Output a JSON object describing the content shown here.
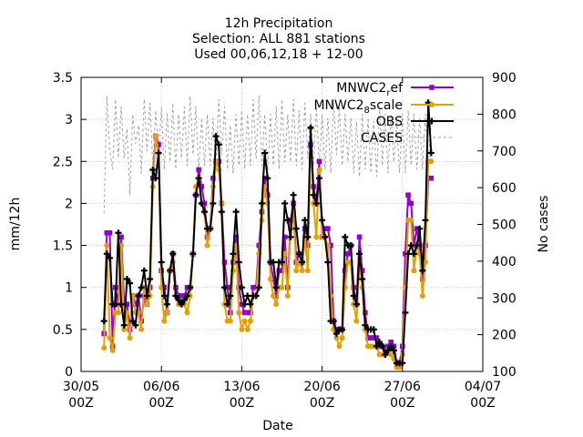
{
  "chart_data": {
    "type": "line",
    "title_lines": [
      "12h Precipitation",
      "Selection: ALL     881 stations",
      "Used 00,06,12,18 + 12-00"
    ],
    "xlabel": "Date",
    "ylabel": "mm/12h",
    "y2label": "No cases",
    "x_ticks": [
      {
        "day": 0,
        "line1": "30/05",
        "line2": "00Z"
      },
      {
        "day": 7,
        "line1": "06/06",
        "line2": "00Z"
      },
      {
        "day": 14,
        "line1": "13/06",
        "line2": "00Z"
      },
      {
        "day": 21,
        "line1": "20/06",
        "line2": "00Z"
      },
      {
        "day": 28,
        "line1": "27/06",
        "line2": "00Z"
      },
      {
        "day": 35,
        "line1": "04/07",
        "line2": "00Z"
      }
    ],
    "x_range": [
      0,
      35
    ],
    "y_ticks": [
      "0",
      "0.5",
      "1",
      "1.5",
      "2",
      "2.5",
      "3",
      "3.5"
    ],
    "ylim": [
      0,
      3.5
    ],
    "y2_ticks": [
      "100",
      "200",
      "300",
      "400",
      "500",
      "600",
      "700",
      "800",
      "900"
    ],
    "y2lim": [
      100,
      900
    ],
    "grid": true,
    "legend_position": "top-right",
    "x_step_days": 0.25,
    "x_start_day": 2.0,
    "series": [
      {
        "name": "MNWC2_ref",
        "label_main": "MNWC2",
        "label_sub": "r",
        "label_rest": "ef",
        "color": "#9400d3",
        "axis": "y1",
        "marker": "square",
        "values": [
          0.45,
          1.65,
          1.65,
          0.3,
          1.0,
          0.8,
          1.6,
          0.8,
          0.8,
          0.5,
          0.9,
          0.8,
          0.9,
          0.6,
          0.9,
          0.8,
          1.0,
          2.3,
          2.8,
          2.7,
          1.2,
          1.0,
          0.7,
          1.2,
          1.4,
          1.0,
          0.9,
          0.9,
          0.9,
          1.0,
          1.0,
          1.4,
          2.1,
          2.4,
          2.2,
          2.0,
          1.6,
          1.7,
          2.3,
          2.5,
          2.5,
          2.0,
          1.3,
          1.0,
          0.7,
          1.3,
          1.6,
          1.0,
          0.8,
          0.7,
          0.7,
          0.7,
          1.0,
          1.0,
          1.5,
          1.9,
          2.3,
          2.1,
          1.3,
          1.1,
          0.9,
          1.2,
          1.2,
          1.6,
          1.0,
          1.8,
          2.0,
          1.3,
          1.4,
          1.3,
          1.7,
          1.5,
          2.7,
          2.2,
          2.0,
          2.5,
          1.6,
          1.7,
          1.7,
          1.5,
          0.6,
          0.5,
          0.5,
          0.5,
          1.2,
          1.4,
          1.5,
          1.0,
          0.8,
          1.6,
          1.2,
          0.7,
          0.4,
          0.4,
          0.4,
          0.4,
          0.3,
          0.3,
          0.25,
          0.3,
          0.35,
          0.3,
          0.1,
          0.1,
          0.3,
          1.4,
          2.1,
          2.0,
          1.5,
          1.7,
          1.5,
          1.1,
          1.5,
          2.3,
          2.3
        ]
      },
      {
        "name": "MNWC2_8scale",
        "label_main": "MNWC2",
        "label_sub": "8",
        "label_rest": "scale",
        "color": "#e69f00",
        "axis": "y1",
        "marker": "circle",
        "values": [
          0.28,
          1.5,
          0.4,
          0.25,
          0.7,
          0.7,
          1.5,
          0.5,
          0.7,
          0.4,
          0.9,
          0.7,
          0.7,
          0.5,
          1.0,
          0.8,
          0.9,
          2.2,
          2.8,
          2.6,
          1.0,
          0.6,
          0.7,
          1.2,
          1.3,
          0.9,
          0.8,
          0.8,
          0.8,
          0.7,
          0.9,
          1.4,
          2.2,
          2.3,
          2.0,
          1.9,
          1.5,
          1.7,
          2.2,
          2.5,
          2.4,
          2.0,
          0.8,
          0.6,
          0.6,
          1.2,
          1.5,
          0.7,
          0.5,
          0.6,
          0.5,
          0.6,
          0.9,
          0.9,
          1.4,
          1.8,
          2.2,
          2.0,
          1.1,
          0.9,
          0.8,
          1.0,
          1.0,
          1.4,
          0.9,
          1.7,
          1.9,
          1.2,
          1.3,
          1.2,
          1.6,
          1.2,
          2.9,
          2.0,
          1.6,
          2.4,
          1.6,
          1.6,
          1.5,
          0.9,
          0.5,
          0.4,
          0.3,
          0.4,
          1.0,
          1.3,
          1.3,
          0.8,
          0.6,
          1.3,
          1.0,
          0.5,
          0.3,
          0.3,
          0.3,
          0.3,
          0.2,
          0.2,
          0.2,
          0.25,
          0.2,
          0.15,
          0.05,
          0.05,
          0.2,
          1.0,
          1.8,
          1.8,
          1.2,
          1.5,
          1.4,
          0.9,
          1.3,
          2.5,
          2.5
        ]
      },
      {
        "name": "OBS",
        "label_main": "OBS",
        "label_sub": "",
        "label_rest": "",
        "color": "#000000",
        "axis": "y1",
        "marker": "plus",
        "values": [
          0.6,
          1.4,
          1.35,
          0.8,
          0.8,
          1.65,
          0.8,
          0.55,
          1.1,
          1.05,
          0.6,
          0.55,
          0.9,
          1.0,
          1.2,
          0.9,
          1.1,
          2.4,
          2.3,
          2.6,
          1.3,
          0.9,
          0.8,
          1.2,
          1.4,
          0.9,
          0.85,
          0.8,
          0.85,
          0.9,
          1.0,
          1.4,
          2.1,
          2.3,
          2.0,
          1.9,
          1.7,
          1.7,
          2.0,
          2.8,
          2.7,
          1.9,
          1.0,
          0.8,
          0.9,
          1.4,
          1.9,
          1.3,
          1.0,
          0.8,
          0.9,
          0.8,
          0.9,
          0.9,
          1.0,
          2.0,
          2.6,
          2.3,
          1.3,
          1.3,
          1.0,
          1.3,
          1.3,
          2.0,
          1.8,
          1.6,
          2.1,
          1.7,
          1.4,
          1.3,
          1.8,
          1.6,
          2.9,
          2.1,
          2.0,
          2.3,
          1.8,
          1.6,
          1.3,
          0.6,
          0.6,
          0.45,
          0.5,
          0.5,
          1.6,
          1.5,
          1.5,
          0.9,
          0.8,
          1.4,
          1.1,
          0.55,
          0.5,
          0.5,
          0.5,
          0.3,
          0.35,
          0.3,
          0.2,
          0.25,
          0.3,
          0.25,
          0.1,
          0.1,
          0.1,
          0.7,
          1.4,
          1.5,
          1.4,
          1.5,
          1.7,
          1.2,
          1.8,
          3.2,
          2.6
        ]
      },
      {
        "name": "CASES",
        "label_main": "CASES",
        "label_sub": "",
        "label_rest": "",
        "color": "#a0a0a0",
        "axis": "y2",
        "marker": "none",
        "dashed": true,
        "values": [
          530,
          850,
          700,
          650,
          840,
          680,
          820,
          680,
          760,
          580,
          800,
          720,
          770,
          640,
          840,
          700,
          830,
          660,
          810,
          690,
          820,
          650,
          800,
          670,
          830,
          650,
          800,
          680,
          820,
          660,
          850,
          690,
          820,
          640,
          790,
          660,
          800,
          660,
          790,
          650,
          840,
          690,
          820,
          650,
          770,
          640,
          800,
          660,
          810,
          650,
          800,
          660,
          840,
          680,
          850,
          660,
          800,
          640,
          800,
          660,
          820,
          650,
          840,
          670,
          800,
          670,
          840,
          660,
          810,
          650,
          830,
          680,
          800,
          660,
          820,
          660,
          800,
          650,
          790,
          640,
          840,
          690,
          820,
          660,
          800,
          670,
          790,
          640,
          780,
          630,
          800,
          650,
          790,
          640,
          780,
          630,
          820,
          660,
          800,
          640,
          800,
          670,
          780,
          640,
          800,
          640,
          810,
          660,
          800,
          650,
          790,
          650,
          800,
          660,
          780
        ]
      }
    ]
  }
}
